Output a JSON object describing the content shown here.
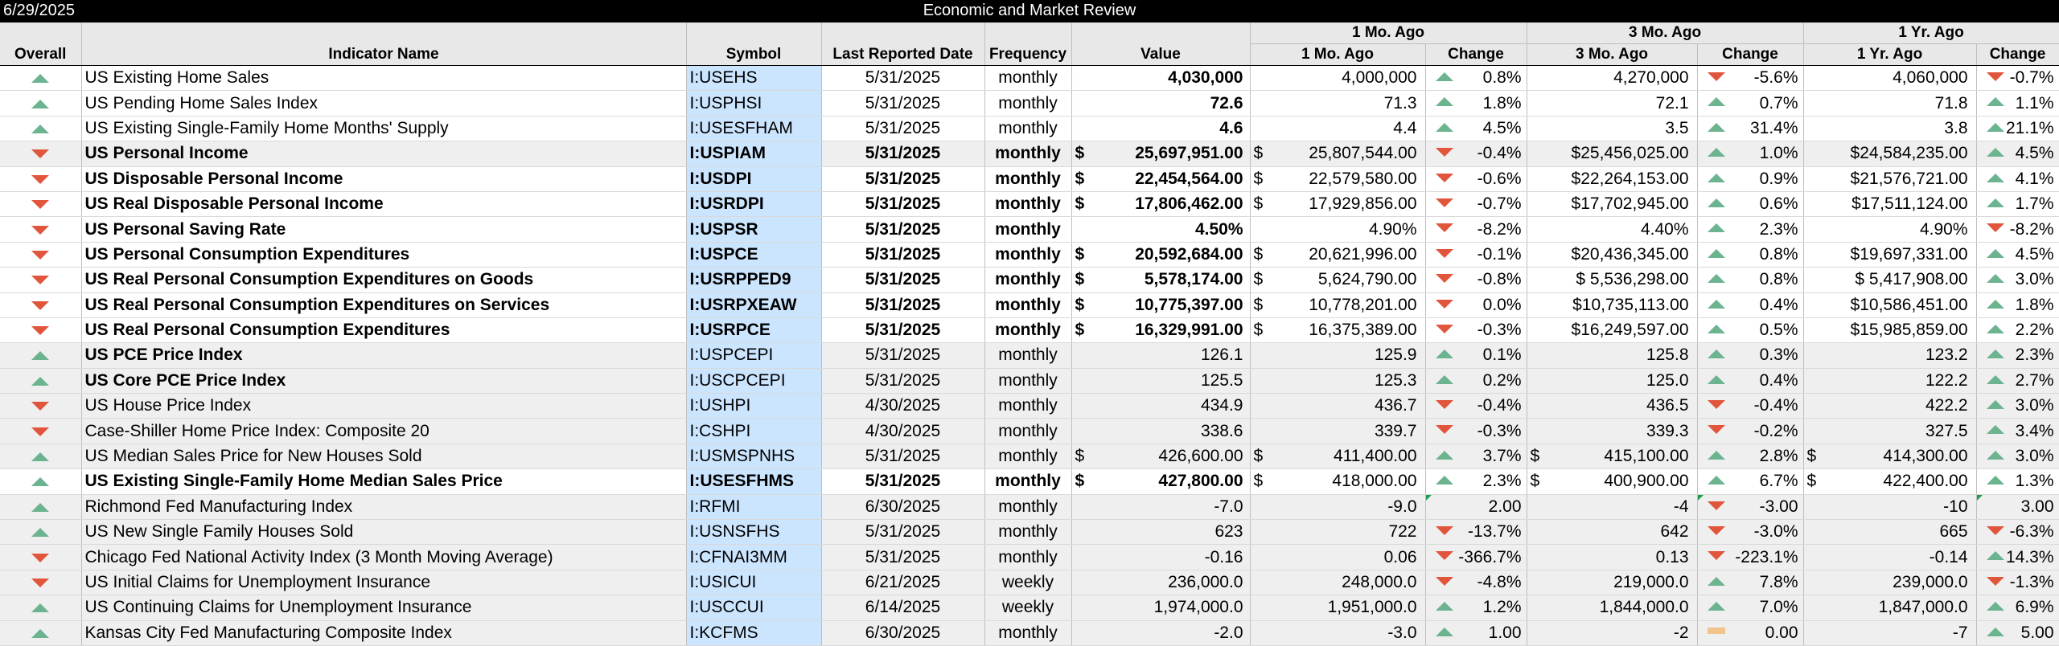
{
  "header": {
    "date": "6/29/2025",
    "title": "Economic and Market Review"
  },
  "columns": {
    "overall": "Overall",
    "name": "Indicator Name",
    "symbol": "Symbol",
    "date": "Last Reported Date",
    "frequency": "Frequency",
    "value": "Value",
    "group1": "1 Mo. Ago",
    "group3": "3 Mo. Ago",
    "group12": "1 Yr. Ago",
    "sub1": "1 Mo. Ago",
    "sub3": "3 Mo. Ago",
    "sub12": "1 Yr. Ago",
    "change": "Change"
  },
  "colors": {
    "up": "#6cb38f",
    "down": "#e0553b",
    "symbol_bg": "#cce5ff"
  },
  "rows": [
    {
      "overall": "up",
      "name": "US Existing Home Sales",
      "symbol": "I:USEHS",
      "date": "5/31/2025",
      "freq": "monthly",
      "value": "4,030,000",
      "m1": "4,000,000",
      "m1c": "0.8%",
      "m1d": "up",
      "m3": "4,270,000",
      "m3c": "-5.6%",
      "m3d": "down",
      "y1": "4,060,000",
      "y1c": "-0.7%",
      "y1d": "down",
      "bold": false,
      "vbold": true,
      "money": false
    },
    {
      "overall": "up",
      "name": "US Pending Home Sales Index",
      "symbol": "I:USPHSI",
      "date": "5/31/2025",
      "freq": "monthly",
      "value": "72.6",
      "m1": "71.3",
      "m1c": "1.8%",
      "m1d": "up",
      "m3": "72.1",
      "m3c": "0.7%",
      "m3d": "up",
      "y1": "71.8",
      "y1c": "1.1%",
      "y1d": "up",
      "bold": false,
      "vbold": true,
      "money": false
    },
    {
      "overall": "up",
      "name": "US Existing Single-Family Home Months' Supply",
      "symbol": "I:USESFHAM",
      "date": "5/31/2025",
      "freq": "monthly",
      "value": "4.6",
      "m1": "4.4",
      "m1c": "4.5%",
      "m1d": "up",
      "m3": "3.5",
      "m3c": "31.4%",
      "m3d": "up",
      "y1": "3.8",
      "y1c": "21.1%",
      "y1d": "up",
      "bold": false,
      "vbold": true,
      "money": false
    },
    {
      "overall": "down",
      "name": "US Personal Income",
      "symbol": "I:USPIAM",
      "date": "5/31/2025",
      "freq": "monthly",
      "value": "25,697,951.00",
      "m1": "25,807,544.00",
      "m1c": "-0.4%",
      "m1d": "down",
      "m3": "$25,456,025.00",
      "m3c": "1.0%",
      "m3d": "up",
      "y1": "$24,584,235.00",
      "y1c": "4.5%",
      "y1d": "up",
      "bold": true,
      "money": true,
      "shaded": true
    },
    {
      "overall": "down",
      "name": "US Disposable Personal Income",
      "symbol": "I:USDPI",
      "date": "5/31/2025",
      "freq": "monthly",
      "value": "22,454,564.00",
      "m1": "22,579,580.00",
      "m1c": "-0.6%",
      "m1d": "down",
      "m3": "$22,264,153.00",
      "m3c": "0.9%",
      "m3d": "up",
      "y1": "$21,576,721.00",
      "y1c": "4.1%",
      "y1d": "up",
      "bold": true,
      "money": true
    },
    {
      "overall": "down",
      "name": "US Real Disposable Personal Income",
      "symbol": "I:USRDPI",
      "date": "5/31/2025",
      "freq": "monthly",
      "value": "17,806,462.00",
      "m1": "17,929,856.00",
      "m1c": "-0.7%",
      "m1d": "down",
      "m3": "$17,702,945.00",
      "m3c": "0.6%",
      "m3d": "up",
      "y1": "$17,511,124.00",
      "y1c": "1.7%",
      "y1d": "up",
      "bold": true,
      "money": true
    },
    {
      "overall": "down",
      "name": "US Personal Saving Rate",
      "symbol": "I:USPSR",
      "date": "5/31/2025",
      "freq": "monthly",
      "value": "4.50%",
      "m1": "4.90%",
      "m1c": "-8.2%",
      "m1d": "down",
      "m3": "4.40%",
      "m3c": "2.3%",
      "m3d": "up",
      "y1": "4.90%",
      "y1c": "-8.2%",
      "y1d": "down",
      "bold": true,
      "money": false
    },
    {
      "overall": "down",
      "name": "US Personal Consumption Expenditures",
      "symbol": "I:USPCE",
      "date": "5/31/2025",
      "freq": "monthly",
      "value": "20,592,684.00",
      "m1": "20,621,996.00",
      "m1c": "-0.1%",
      "m1d": "down",
      "m3": "$20,436,345.00",
      "m3c": "0.8%",
      "m3d": "up",
      "y1": "$19,697,331.00",
      "y1c": "4.5%",
      "y1d": "up",
      "bold": true,
      "money": true
    },
    {
      "overall": "down",
      "name": "US Real Personal Consumption Expenditures on Goods",
      "symbol": "I:USRPPED9",
      "date": "5/31/2025",
      "freq": "monthly",
      "value": "5,578,174.00",
      "m1": "5,624,790.00",
      "m1c": "-0.8%",
      "m1d": "down",
      "m3": "$ 5,536,298.00",
      "m3c": "0.8%",
      "m3d": "up",
      "y1": "$ 5,417,908.00",
      "y1c": "3.0%",
      "y1d": "up",
      "bold": true,
      "money": true
    },
    {
      "overall": "down",
      "name": "US Real Personal Consumption Expenditures on Services",
      "symbol": "I:USRPXEAW",
      "date": "5/31/2025",
      "freq": "monthly",
      "value": "10,775,397.00",
      "m1": "10,778,201.00",
      "m1c": "0.0%",
      "m1d": "down",
      "m3": "$10,735,113.00",
      "m3c": "0.4%",
      "m3d": "up",
      "y1": "$10,586,451.00",
      "y1c": "1.8%",
      "y1d": "up",
      "bold": true,
      "money": true
    },
    {
      "overall": "down",
      "name": "US Real Personal Consumption Expenditures",
      "symbol": "I:USRPCE",
      "date": "5/31/2025",
      "freq": "monthly",
      "value": "16,329,991.00",
      "m1": "16,375,389.00",
      "m1c": "-0.3%",
      "m1d": "down",
      "m3": "$16,249,597.00",
      "m3c": "0.5%",
      "m3d": "up",
      "y1": "$15,985,859.00",
      "y1c": "2.2%",
      "y1d": "up",
      "bold": true,
      "money": true
    },
    {
      "overall": "up",
      "name": "US PCE Price Index",
      "symbol": "I:USPCEPI",
      "date": "5/31/2025",
      "freq": "monthly",
      "value": "126.1",
      "m1": "125.9",
      "m1c": "0.1%",
      "m1d": "up",
      "m3": "125.8",
      "m3c": "0.3%",
      "m3d": "up",
      "y1": "123.2",
      "y1c": "2.3%",
      "y1d": "up",
      "bold": false,
      "nbold": true,
      "money": false,
      "shaded": true
    },
    {
      "overall": "up",
      "name": "US Core PCE Price Index",
      "symbol": "I:USCPCEPI",
      "date": "5/31/2025",
      "freq": "monthly",
      "value": "125.5",
      "m1": "125.3",
      "m1c": "0.2%",
      "m1d": "up",
      "m3": "125.0",
      "m3c": "0.4%",
      "m3d": "up",
      "y1": "122.2",
      "y1c": "2.7%",
      "y1d": "up",
      "bold": false,
      "nbold": true,
      "money": false,
      "shaded": true
    },
    {
      "overall": "down",
      "name": "US House Price Index",
      "symbol": "I:USHPI",
      "date": "4/30/2025",
      "freq": "monthly",
      "value": "434.9",
      "m1": "436.7",
      "m1c": "-0.4%",
      "m1d": "down",
      "m3": "436.5",
      "m3c": "-0.4%",
      "m3d": "down",
      "y1": "422.2",
      "y1c": "3.0%",
      "y1d": "up",
      "bold": false,
      "money": false,
      "shaded": true
    },
    {
      "overall": "down",
      "name": "Case-Shiller Home Price Index: Composite 20",
      "symbol": "I:CSHPI",
      "date": "4/30/2025",
      "freq": "monthly",
      "value": "338.6",
      "m1": "339.7",
      "m1c": "-0.3%",
      "m1d": "down",
      "m3": "339.3",
      "m3c": "-0.2%",
      "m3d": "down",
      "y1": "327.5",
      "y1c": "3.4%",
      "y1d": "up",
      "bold": false,
      "money": false,
      "shaded": true
    },
    {
      "overall": "up",
      "name": "US Median Sales Price for New Houses Sold",
      "symbol": "I:USMSPNHS",
      "date": "5/31/2025",
      "freq": "monthly",
      "value": "426,600.00",
      "m1": "411,400.00",
      "m1c": "3.7%",
      "m1d": "up",
      "m3": "415,100.00",
      "m3c": "2.8%",
      "m3d": "up",
      "y1": "414,300.00",
      "y1c": "3.0%",
      "y1d": "up",
      "bold": false,
      "money": true,
      "money_all": true,
      "shaded": true
    },
    {
      "overall": "up",
      "name": "US Existing Single-Family Home Median Sales Price",
      "symbol": "I:USESFHMS",
      "date": "5/31/2025",
      "freq": "monthly",
      "value": "427,800.00",
      "m1": "418,000.00",
      "m1c": "2.3%",
      "m1d": "up",
      "m3": "400,900.00",
      "m3c": "6.7%",
      "m3d": "up",
      "y1": "422,400.00",
      "y1c": "1.3%",
      "y1d": "up",
      "bold": true,
      "money": true,
      "money_all": true
    },
    {
      "overall": "up",
      "name": "Richmond Fed Manufacturing Index",
      "symbol": "I:RFMI",
      "date": "6/30/2025",
      "freq": "monthly",
      "value": "-7.0",
      "m1": "-9.0",
      "m1c": "2.00",
      "m1d": "corner",
      "m3": "-4",
      "m3c": "-3.00",
      "m3d": "down",
      "m3corner": true,
      "y1": "-10",
      "y1c": "3.00",
      "y1d": "corner",
      "bold": false,
      "money": false,
      "shaded": true
    },
    {
      "overall": "up",
      "name": "US New Single Family Houses Sold",
      "symbol": "I:USNSFHS",
      "date": "5/31/2025",
      "freq": "monthly",
      "value": "623",
      "m1": "722",
      "m1c": "-13.7%",
      "m1d": "down",
      "m3": "642",
      "m3c": "-3.0%",
      "m3d": "down",
      "y1": "665",
      "y1c": "-6.3%",
      "y1d": "down",
      "bold": false,
      "money": false,
      "shaded": true
    },
    {
      "overall": "down",
      "name": "Chicago Fed National Activity Index (3 Month Moving Average)",
      "symbol": "I:CFNAI3MM",
      "date": "5/31/2025",
      "freq": "monthly",
      "value": "-0.16",
      "m1": "0.06",
      "m1c": "-366.7%",
      "m1d": "down",
      "m3": "0.13",
      "m3c": "-223.1%",
      "m3d": "down",
      "y1": "-0.14",
      "y1c": "14.3%",
      "y1d": "up",
      "bold": false,
      "money": false,
      "shaded": true
    },
    {
      "overall": "down",
      "name": "US Initial Claims for Unemployment Insurance",
      "symbol": "I:USICUI",
      "date": "6/21/2025",
      "freq": "weekly",
      "value": "236,000.0",
      "m1": "248,000.0",
      "m1c": "-4.8%",
      "m1d": "down",
      "m3": "219,000.0",
      "m3c": "7.8%",
      "m3d": "up",
      "y1": "239,000.0",
      "y1c": "-1.3%",
      "y1d": "down",
      "bold": false,
      "money": false,
      "shaded": true
    },
    {
      "overall": "up",
      "name": "US Continuing Claims for Unemployment Insurance",
      "symbol": "I:USCCUI",
      "date": "6/14/2025",
      "freq": "weekly",
      "value": "1,974,000.0",
      "m1": "1,951,000.0",
      "m1c": "1.2%",
      "m1d": "up",
      "m3": "1,844,000.0",
      "m3c": "7.0%",
      "m3d": "up",
      "y1": "1,847,000.0",
      "y1c": "6.9%",
      "y1d": "up",
      "bold": false,
      "money": false,
      "shaded": true
    },
    {
      "overall": "up",
      "name": "Kansas City Fed Manufacturing Composite Index",
      "symbol": "I:KCFMS",
      "date": "6/30/2025",
      "freq": "monthly",
      "value": "-2.0",
      "m1": "-3.0",
      "m1c": "1.00",
      "m1d": "up",
      "m3": "-2",
      "m3c": "0.00",
      "m3d": "flat",
      "y1": "-7",
      "y1c": "5.00",
      "y1d": "up",
      "bold": false,
      "money": false,
      "shaded": true
    }
  ]
}
